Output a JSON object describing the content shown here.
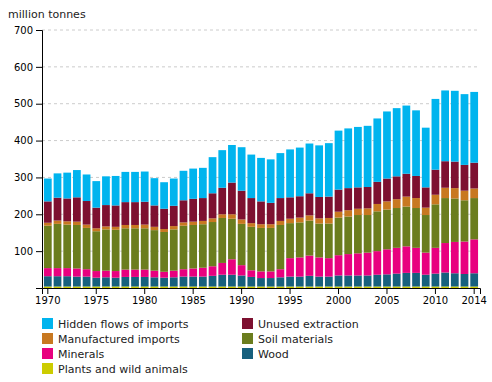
{
  "chart_data": {
    "type": "bar",
    "stacked": true,
    "grid": true,
    "legend": "bottom",
    "ylabel": "million tonnes",
    "categories": [
      "1970",
      null,
      null,
      null,
      null,
      "1975",
      null,
      null,
      null,
      null,
      "1980",
      null,
      null,
      null,
      null,
      "1985",
      null,
      null,
      null,
      null,
      "1990",
      null,
      null,
      null,
      null,
      "1995",
      null,
      null,
      null,
      null,
      "2000",
      null,
      null,
      null,
      null,
      "2005",
      null,
      null,
      null,
      null,
      "2010",
      null,
      null,
      null,
      "2014"
    ],
    "ylim": [
      0,
      700
    ],
    "yticks": [
      {
        "value": 0,
        "label": ""
      },
      100,
      200,
      300,
      400,
      500,
      600,
      700
    ],
    "series": [
      {
        "name": "Plants and wild animals",
        "color": "#cccc00",
        "values": [
          4,
          4,
          4,
          4,
          4,
          4,
          4,
          4,
          4,
          4,
          4,
          4,
          4,
          4,
          4,
          4,
          4,
          4,
          4,
          4,
          4,
          4,
          4,
          4,
          4,
          4,
          4,
          4,
          4,
          4,
          4,
          4,
          4,
          4,
          4,
          4,
          4,
          4,
          4,
          4,
          4,
          4,
          4,
          4,
          4
        ]
      },
      {
        "name": "Wood",
        "color": "#17607d",
        "values": [
          28,
          28,
          28,
          27,
          27,
          24,
          25,
          24,
          26,
          26,
          26,
          25,
          24,
          25,
          27,
          27,
          27,
          29,
          32,
          32,
          30,
          26,
          23,
          23,
          25,
          27,
          27,
          29,
          27,
          27,
          30,
          30,
          30,
          30,
          32,
          33,
          35,
          37,
          37,
          32,
          35,
          38,
          36,
          34,
          36
        ]
      },
      {
        "name": "Minerals",
        "color": "#e8007f",
        "values": [
          22,
          22,
          22,
          22,
          20,
          18,
          18,
          18,
          20,
          20,
          20,
          18,
          16,
          18,
          20,
          22,
          24,
          26,
          32,
          42,
          28,
          18,
          18,
          18,
          22,
          50,
          52,
          55,
          52,
          50,
          55,
          58,
          60,
          62,
          64,
          68,
          70,
          72,
          68,
          60,
          70,
          80,
          85,
          88,
          92
        ]
      },
      {
        "name": "Soil materials",
        "color": "#6b7d1e",
        "values": [
          115,
          120,
          118,
          118,
          112,
          108,
          112,
          112,
          112,
          112,
          112,
          110,
          108,
          112,
          118,
          118,
          118,
          120,
          122,
          110,
          112,
          118,
          118,
          118,
          120,
          95,
          95,
          95,
          92,
          94,
          102,
          102,
          104,
          102,
          108,
          108,
          108,
          108,
          108,
          102,
          118,
          122,
          118,
          112,
          112
        ]
      },
      {
        "name": "Manufactured imports",
        "color": "#c87820",
        "values": [
          8,
          9,
          9,
          9,
          9,
          8,
          8,
          8,
          9,
          9,
          10,
          9,
          8,
          9,
          9,
          9,
          9,
          10,
          10,
          12,
          12,
          10,
          10,
          10,
          11,
          12,
          13,
          14,
          14,
          15,
          16,
          17,
          17,
          18,
          20,
          22,
          24,
          27,
          27,
          20,
          26,
          28,
          28,
          26,
          26
        ]
      },
      {
        "name": "Unused extraction",
        "color": "#7d1030",
        "values": [
          58,
          62,
          62,
          66,
          64,
          56,
          58,
          58,
          62,
          62,
          62,
          58,
          55,
          55,
          60,
          62,
          62,
          68,
          72,
          86,
          78,
          68,
          62,
          58,
          62,
          58,
          58,
          60,
          58,
          58,
          60,
          60,
          58,
          58,
          60,
          62,
          62,
          62,
          60,
          55,
          68,
          72,
          72,
          70,
          70
        ]
      },
      {
        "name": "Hidden flows of imports",
        "color": "#00b4ee",
        "values": [
          62,
          66,
          70,
          74,
          72,
          72,
          78,
          80,
          82,
          82,
          82,
          74,
          72,
          74,
          80,
          82,
          82,
          98,
          102,
          102,
          118,
          118,
          118,
          118,
          122,
          130,
          132,
          135,
          140,
          145,
          160,
          162,
          164,
          166,
          172,
          182,
          185,
          185,
          178,
          162,
          192,
          192,
          192,
          192,
          192
        ]
      }
    ]
  }
}
